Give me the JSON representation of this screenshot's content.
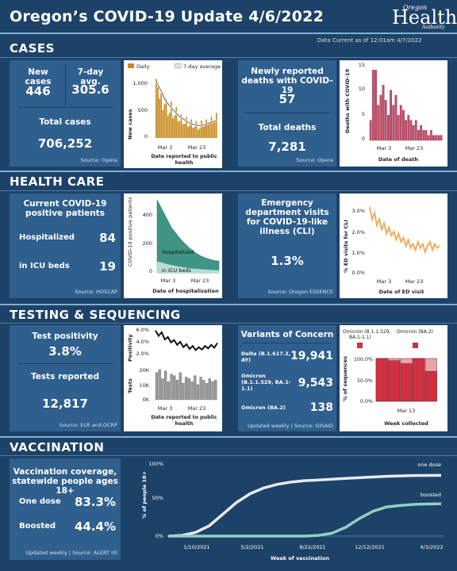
{
  "header": {
    "title": "Oregon’s COVID-19 Update 4/6/2022",
    "logo": {
      "top": "Oregon",
      "main": "Health",
      "bottom": "Authority"
    },
    "data_current": "Data Current as of 12:01am 4/7/2022"
  },
  "cases": {
    "section": "CASES",
    "new_cases_label": "New cases",
    "new_cases_value": "446",
    "avg_label": "7-day avg.",
    "avg_value": "305.6",
    "total_label": "Total cases",
    "total_value": "706,252",
    "source": "Source: Opera",
    "deaths_label": "Newly reported deaths with COVID-19",
    "deaths_value": "57",
    "total_deaths_label": "Total deaths",
    "total_deaths_value": "7,281",
    "deaths_source": "Source: Opera"
  },
  "health_care": {
    "section": "HEALTH CARE",
    "current_label": "Current COVID-19 positive patients",
    "hosp_label": "Hospitalized",
    "hosp_value": "84",
    "icu_label": "in ICU beds",
    "icu_value": "19",
    "source": "Source: HOSCAP",
    "ed_label": "Emergency department visits for COVID-19-like illness (CLI)",
    "ed_value": "1.3%",
    "ed_source": "Source: Oregon ESSENCE"
  },
  "testing": {
    "section": "TESTING & SEQUENCING",
    "pos_label": "Test positivity",
    "pos_value": "3.8%",
    "reported_label": "Tests reported",
    "reported_value": "12,817",
    "source": "Source: ELR and OCRP",
    "voc_title": "Variants of Concern",
    "variants": [
      {
        "name": "Delta (B.1.617.2, AY)",
        "value": "19,941"
      },
      {
        "name": "Omicron (B.1.1.529, BA.1-1.1)",
        "value": "9,543"
      },
      {
        "name": "Omicron (BA.2)",
        "value": "138"
      }
    ],
    "voc_source": "Updated weekly | Source: GISAID"
  },
  "vaccination": {
    "section": "VACCINATION",
    "cov_label": "Vaccination coverage, statewide people ages 18+",
    "one_label": "One dose",
    "one_value": "83.3%",
    "boost_label": "Boosted",
    "boost_value": "44.4%",
    "source": "Updated weekly | Source: ALERT IIS"
  },
  "colors": {
    "background": "#1d4268",
    "panel": "#2f5f8d",
    "bar": "#c98a1e",
    "death_bar": "#c3506b",
    "hosp": "#3f9486",
    "ed_line": "#f0ae60",
    "omicron": "#d03040"
  },
  "chart_data": [
    {
      "type": "bar",
      "id": "daily-cases",
      "legend": [
        "Daily",
        "7-day average"
      ],
      "ylabel": "New cases",
      "xlabel": "Date reported to public health",
      "xticks": [
        "Mar 3",
        "Mar 23"
      ],
      "yticks": [
        "0",
        "500",
        "1,000"
      ],
      "ylim": [
        0,
        1100
      ],
      "values": [
        1050,
        900,
        700,
        800,
        500,
        600,
        700,
        400,
        450,
        650,
        350,
        400,
        550,
        300,
        300,
        420,
        250,
        250,
        370,
        200,
        220,
        330,
        180,
        200,
        300,
        150,
        170,
        310,
        200,
        250,
        330,
        260,
        270,
        380,
        300,
        320,
        446
      ],
      "average": [
        1000,
        940,
        880,
        830,
        760,
        690,
        650,
        610,
        570,
        540,
        500,
        470,
        440,
        410,
        380,
        360,
        340,
        320,
        300,
        280,
        265,
        255,
        245,
        235,
        228,
        222,
        220,
        225,
        232,
        240,
        250,
        262,
        272,
        283,
        292,
        300,
        306
      ]
    },
    {
      "type": "bar",
      "id": "deaths",
      "ylabel": "Deaths with COVID-19",
      "xlabel": "Date of death",
      "xticks": [
        "Mar 3",
        "Mar 23"
      ],
      "yticks": [
        "0",
        "5",
        "10",
        "15"
      ],
      "ylim": [
        0,
        16
      ],
      "values": [
        4,
        14,
        14,
        7,
        9,
        11,
        8,
        5,
        10,
        7,
        9,
        5,
        7,
        6,
        4,
        5,
        4,
        3,
        4,
        2,
        3,
        2,
        2,
        1,
        2,
        1,
        1,
        1,
        1
      ]
    },
    {
      "type": "area",
      "id": "hospitalization",
      "ylabel": "COVID-19 positive patients",
      "xlabel": "Date of hospitalization",
      "xticks": [
        "Mar 3",
        "Mar 23"
      ],
      "yticks": [
        "0",
        "200",
        "400"
      ],
      "ylim": [
        0,
        520
      ],
      "series": [
        {
          "name": "Hospitalized",
          "values": [
            520,
            470,
            420,
            370,
            320,
            290,
            255,
            225,
            200,
            175,
            155,
            135,
            120,
            110,
            100,
            92,
            86,
            84
          ]
        },
        {
          "name": "in ICU beds",
          "values": [
            80,
            75,
            68,
            60,
            55,
            50,
            45,
            40,
            36,
            33,
            30,
            28,
            26,
            24,
            22,
            21,
            20,
            19
          ]
        }
      ]
    },
    {
      "type": "line",
      "id": "ed-visits",
      "ylabel": "% ED visits for CLI",
      "xlabel": "Date of ED visit",
      "xticks": [
        "Mar 3",
        "Mar 23"
      ],
      "yticks": [
        "0.0%",
        "1.0%",
        "2.0%",
        "3.0%"
      ],
      "ylim": [
        0,
        3.3
      ],
      "values": [
        3.2,
        2.6,
        2.9,
        2.3,
        2.6,
        2.1,
        2.4,
        1.9,
        2.2,
        1.8,
        2.0,
        1.6,
        1.9,
        1.5,
        1.7,
        1.3,
        1.6,
        1.2,
        1.4,
        1.1,
        1.5,
        1.2,
        1.4,
        1.0,
        1.3,
        1.5,
        1.1,
        1.4,
        1.2,
        1.3
      ]
    },
    {
      "type": "line",
      "id": "positivity",
      "ylabel": "Positivity",
      "yticks": [
        "2.0%",
        "4.0%",
        "6.0%"
      ],
      "ylim": [
        1.5,
        6.5
      ],
      "values": [
        5.9,
        5.0,
        5.6,
        4.4,
        4.8,
        3.9,
        4.3,
        3.5,
        4.0,
        3.1,
        3.6,
        2.8,
        3.3,
        2.6,
        3.1,
        2.7,
        3.3,
        2.9,
        3.5,
        3.0,
        3.8
      ]
    },
    {
      "type": "bar",
      "id": "tests",
      "ylabel": "Tests",
      "xlabel": "Date reported to public health",
      "xticks": [
        "Mar 3",
        "Mar 23"
      ],
      "yticks": [
        "0K",
        "10K",
        "20K"
      ],
      "ylim": [
        0,
        22
      ],
      "values": [
        18,
        20,
        14,
        19,
        12,
        17,
        16,
        13,
        18,
        11,
        15,
        14,
        12,
        16,
        10,
        15,
        13,
        11,
        14,
        12,
        13
      ]
    },
    {
      "type": "bar",
      "id": "variants",
      "legend": [
        "Omicron (B.1.1.529, BA.1-1.1)",
        "Omicron (BA.2)"
      ],
      "ylabel": "% of sequences",
      "xlabel": "Week collected",
      "xticks": [
        "Mar 13"
      ],
      "yticks": [
        "0.0%",
        "50.0%",
        "100.0%"
      ],
      "ylim": [
        0,
        100
      ],
      "values": [
        100,
        95,
        88,
        100,
        70
      ]
    },
    {
      "type": "line",
      "id": "vaccination",
      "ylabel": "% of people 18+",
      "xlabel": "Week of vaccination",
      "xticks": [
        "1/10/2021",
        "5/2/2021",
        "8/22/2021",
        "12/12/2021",
        "4/3/2022"
      ],
      "yticks": [
        "0%",
        "50%",
        "100%"
      ],
      "ylim": [
        0,
        100
      ],
      "series": [
        {
          "name": "one dose",
          "values": [
            0,
            1,
            5,
            14,
            30,
            46,
            58,
            66,
            71,
            74,
            76,
            77,
            78,
            79,
            80,
            81,
            82,
            82.5,
            83,
            83.2,
            83.3
          ]
        },
        {
          "name": "boosted",
          "values": [
            0,
            0,
            0,
            0,
            0,
            0,
            0,
            0,
            0,
            0,
            0,
            1,
            4,
            12,
            24,
            34,
            40,
            42,
            43.5,
            44,
            44.4
          ]
        }
      ]
    }
  ]
}
